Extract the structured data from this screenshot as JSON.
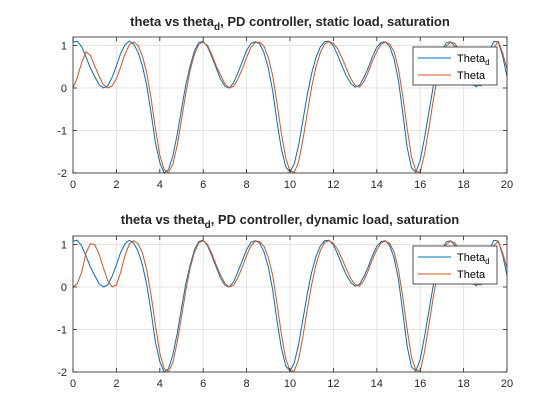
{
  "colors": {
    "theta_d": "#0072BD",
    "theta": "#D95319",
    "grid": "#e3e3e3",
    "axis": "#262626"
  },
  "chart_data": [
    {
      "type": "line",
      "title": "theta vs theta_d, PD controller, static load, saturation",
      "title_parts": {
        "pre": "theta vs theta",
        "sub": "d",
        "post": ", PD controller, static load, saturation"
      },
      "xlabel": "",
      "ylabel": "",
      "xlim": [
        0,
        20
      ],
      "ylim": [
        -2,
        1.2
      ],
      "xticks": [
        0,
        2,
        4,
        6,
        8,
        10,
        12,
        14,
        16,
        18,
        20
      ],
      "yticks": [
        -2,
        -1,
        0,
        1
      ],
      "grid": true,
      "legend": {
        "position": "top-right",
        "entries": [
          {
            "base": "Theta",
            "sub": "d"
          },
          {
            "base": "Theta",
            "sub": ""
          }
        ]
      },
      "x": [
        0,
        0.2,
        0.4,
        0.6,
        0.8,
        1,
        1.2,
        1.4,
        1.6,
        1.8,
        2,
        2.2,
        2.4,
        2.6,
        2.8,
        3,
        3.2,
        3.4,
        3.6,
        3.8,
        4,
        4.2,
        4.4,
        4.6,
        4.8,
        5,
        5.2,
        5.4,
        5.6,
        5.8,
        6,
        6.2,
        6.4,
        6.6,
        6.8,
        7,
        7.2,
        7.4,
        7.6,
        7.8,
        8,
        8.2,
        8.4,
        8.6,
        8.8,
        9,
        9.2,
        9.4,
        9.6,
        9.8,
        10,
        10.2,
        10.4,
        10.6,
        10.8,
        11,
        11.2,
        11.4,
        11.6,
        11.8,
        12,
        12.2,
        12.4,
        12.6,
        12.8,
        13,
        13.2,
        13.4,
        13.6,
        13.8,
        14,
        14.2,
        14.4,
        14.6,
        14.8,
        15,
        15.2,
        15.4,
        15.6,
        15.8,
        16,
        16.2,
        16.4,
        16.6,
        16.8,
        17,
        17.2,
        17.4,
        17.6,
        17.8,
        18,
        18.2,
        18.4,
        18.6,
        18.8,
        19,
        19.2,
        19.4,
        19.6,
        19.8,
        20
      ],
      "series": [
        {
          "name": "Theta_d",
          "values": [
            1.08,
            1.1,
            0.97,
            0.73,
            0.47,
            0.27,
            0.08,
            0.0,
            0.05,
            0.25,
            0.52,
            0.82,
            1.02,
            1.1,
            1.03,
            0.84,
            0.52,
            0.05,
            -0.59,
            -1.3,
            -1.75,
            -2.0,
            -1.92,
            -1.6,
            -1.1,
            -0.5,
            0.08,
            0.52,
            0.88,
            1.07,
            1.1,
            0.97,
            0.73,
            0.47,
            0.21,
            0.04,
            0.0,
            0.12,
            0.36,
            0.62,
            0.88,
            1.05,
            1.09,
            1.04,
            0.83,
            0.47,
            -0.06,
            -0.79,
            -1.43,
            -1.85,
            -1.98,
            -1.78,
            -1.34,
            -0.75,
            -0.15,
            0.35,
            0.72,
            0.97,
            1.09,
            1.1,
            0.99,
            0.77,
            0.51,
            0.28,
            0.11,
            0.02,
            0.06,
            0.24,
            0.47,
            0.74,
            0.96,
            1.07,
            1.09,
            0.97,
            0.68,
            0.17,
            -0.6,
            -1.4,
            -1.88,
            -1.98,
            -1.7,
            -1.17,
            -0.57,
            0.03,
            0.55,
            0.89,
            1.06,
            1.09,
            0.98,
            0.76,
            0.49,
            0.25,
            0.08,
            0.03,
            0.2,
            0.52,
            0.89,
            1.1,
            1.08,
            0.75,
            0.27
          ]
        },
        {
          "name": "Theta",
          "values": [
            0.0,
            0.25,
            0.6,
            0.85,
            0.77,
            0.52,
            0.28,
            0.08,
            0.0,
            0.05,
            0.22,
            0.5,
            0.8,
            1.02,
            1.08,
            1.0,
            0.75,
            0.35,
            -0.25,
            -0.96,
            -1.58,
            -1.92,
            -1.99,
            -1.8,
            -1.35,
            -0.75,
            -0.12,
            0.42,
            0.8,
            1.03,
            1.08,
            1.0,
            0.78,
            0.52,
            0.3,
            0.1,
            0.0,
            0.04,
            0.21,
            0.45,
            0.72,
            0.96,
            1.07,
            1.08,
            0.98,
            0.72,
            0.3,
            -0.35,
            -1.06,
            -1.64,
            -1.96,
            -1.98,
            -1.73,
            -1.2,
            -0.58,
            0.03,
            0.5,
            0.84,
            1.04,
            1.09,
            1.05,
            0.92,
            0.7,
            0.46,
            0.22,
            0.06,
            0.02,
            0.14,
            0.37,
            0.63,
            0.86,
            1.03,
            1.08,
            1.03,
            0.85,
            0.45,
            -0.2,
            -0.95,
            -1.62,
            -1.95,
            -1.99,
            -1.55,
            -0.95,
            -0.3,
            0.28,
            0.73,
            0.99,
            1.08,
            1.05,
            0.88,
            0.66,
            0.42,
            0.2,
            0.07,
            0.05,
            0.21,
            0.55,
            0.95,
            1.1,
            0.82,
            0.45
          ]
        }
      ]
    },
    {
      "type": "line",
      "title": "theta vs theta_d, PD controller, dynamic load, saturation",
      "title_parts": {
        "pre": "theta vs theta",
        "sub": "d",
        "post": ", PD controller, dynamic load, saturation"
      },
      "xlabel": "",
      "ylabel": "",
      "xlim": [
        0,
        20
      ],
      "ylim": [
        -2,
        1.2
      ],
      "xticks": [
        0,
        2,
        4,
        6,
        8,
        10,
        12,
        14,
        16,
        18,
        20
      ],
      "yticks": [
        -2,
        -1,
        0,
        1
      ],
      "grid": true,
      "legend": {
        "position": "top-right",
        "entries": [
          {
            "base": "Theta",
            "sub": "d"
          },
          {
            "base": "Theta",
            "sub": ""
          }
        ]
      },
      "x": [
        0,
        0.2,
        0.4,
        0.6,
        0.8,
        1,
        1.2,
        1.4,
        1.6,
        1.8,
        2,
        2.2,
        2.4,
        2.6,
        2.8,
        3,
        3.2,
        3.4,
        3.6,
        3.8,
        4,
        4.2,
        4.4,
        4.6,
        4.8,
        5,
        5.2,
        5.4,
        5.6,
        5.8,
        6,
        6.2,
        6.4,
        6.6,
        6.8,
        7,
        7.2,
        7.4,
        7.6,
        7.8,
        8,
        8.2,
        8.4,
        8.6,
        8.8,
        9,
        9.2,
        9.4,
        9.6,
        9.8,
        10,
        10.2,
        10.4,
        10.6,
        10.8,
        11,
        11.2,
        11.4,
        11.6,
        11.8,
        12,
        12.2,
        12.4,
        12.6,
        12.8,
        13,
        13.2,
        13.4,
        13.6,
        13.8,
        14,
        14.2,
        14.4,
        14.6,
        14.8,
        15,
        15.2,
        15.4,
        15.6,
        15.8,
        16,
        16.2,
        16.4,
        16.6,
        16.8,
        17,
        17.2,
        17.4,
        17.6,
        17.8,
        18,
        18.2,
        18.4,
        18.6,
        18.8,
        19,
        19.2,
        19.4,
        19.6,
        19.8,
        20
      ],
      "series": [
        {
          "name": "Theta_d",
          "values": [
            1.08,
            1.1,
            0.97,
            0.73,
            0.47,
            0.27,
            0.08,
            0.0,
            0.05,
            0.25,
            0.52,
            0.82,
            1.02,
            1.1,
            1.03,
            0.84,
            0.52,
            0.05,
            -0.59,
            -1.3,
            -1.75,
            -2.0,
            -1.92,
            -1.6,
            -1.1,
            -0.5,
            0.08,
            0.52,
            0.88,
            1.07,
            1.1,
            0.97,
            0.73,
            0.47,
            0.21,
            0.04,
            0.0,
            0.12,
            0.36,
            0.62,
            0.88,
            1.05,
            1.09,
            1.04,
            0.83,
            0.47,
            -0.06,
            -0.79,
            -1.43,
            -1.85,
            -1.98,
            -1.78,
            -1.34,
            -0.75,
            -0.15,
            0.35,
            0.72,
            0.97,
            1.09,
            1.1,
            0.99,
            0.77,
            0.51,
            0.28,
            0.11,
            0.02,
            0.06,
            0.24,
            0.47,
            0.74,
            0.96,
            1.07,
            1.09,
            0.97,
            0.68,
            0.17,
            -0.6,
            -1.4,
            -1.88,
            -1.98,
            -1.7,
            -1.17,
            -0.57,
            0.03,
            0.55,
            0.89,
            1.06,
            1.09,
            0.98,
            0.76,
            0.49,
            0.25,
            0.08,
            0.03,
            0.2,
            0.52,
            0.89,
            1.1,
            1.08,
            0.75,
            0.27
          ]
        },
        {
          "name": "Theta",
          "values": [
            0.0,
            0.08,
            0.35,
            0.8,
            1.02,
            1.0,
            0.78,
            0.45,
            0.15,
            0.0,
            0.05,
            0.35,
            0.75,
            1.02,
            1.09,
            1.02,
            0.8,
            0.4,
            -0.2,
            -0.9,
            -1.55,
            -1.92,
            -1.99,
            -1.78,
            -1.3,
            -0.7,
            -0.08,
            0.45,
            0.82,
            1.04,
            1.09,
            1.0,
            0.78,
            0.52,
            0.28,
            0.09,
            0.0,
            0.04,
            0.22,
            0.47,
            0.74,
            0.97,
            1.08,
            1.07,
            0.96,
            0.7,
            0.28,
            -0.38,
            -1.1,
            -1.68,
            -1.98,
            -1.97,
            -1.7,
            -1.15,
            -0.52,
            0.06,
            0.53,
            0.86,
            1.05,
            1.09,
            1.03,
            0.88,
            0.66,
            0.42,
            0.2,
            0.06,
            0.02,
            0.15,
            0.38,
            0.65,
            0.88,
            1.04,
            1.08,
            1.02,
            0.82,
            0.4,
            -0.25,
            -1.0,
            -1.65,
            -1.96,
            -1.98,
            -1.52,
            -0.9,
            -0.25,
            0.32,
            0.76,
            1.0,
            1.08,
            1.04,
            0.86,
            0.64,
            0.4,
            0.19,
            0.06,
            0.05,
            0.22,
            0.58,
            0.98,
            1.08,
            0.8,
            0.45
          ]
        }
      ]
    }
  ]
}
